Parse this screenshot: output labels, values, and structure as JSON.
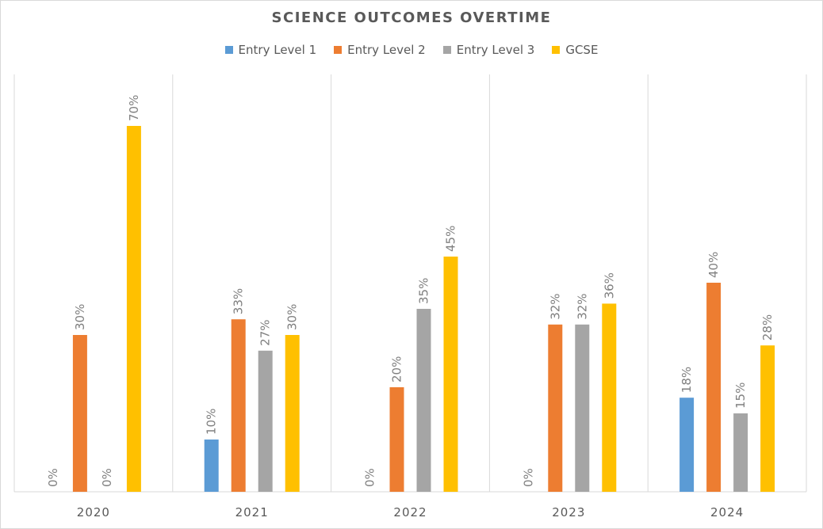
{
  "chart_data": {
    "type": "bar",
    "title": "SCIENCE OUTCOMES OVERTIME",
    "xlabel": "",
    "ylabel": "",
    "categories": [
      "2020",
      "2021",
      "2022",
      "2023",
      "2024"
    ],
    "series": [
      {
        "name": "Entry Level 1",
        "color": "#5b9bd5",
        "values": [
          0,
          10,
          0,
          0,
          18
        ],
        "labels": [
          "0%",
          "10%",
          "0%",
          "0%",
          "18%"
        ]
      },
      {
        "name": "Entry Level 2",
        "color": "#ed7d31",
        "values": [
          30,
          33,
          20,
          32,
          40
        ],
        "labels": [
          "30%",
          "33%",
          "20%",
          "32%",
          "40%"
        ]
      },
      {
        "name": "Entry Level 3",
        "color": "#a5a5a5",
        "values": [
          0,
          27,
          35,
          32,
          15
        ],
        "labels": [
          "0%",
          "27%",
          "35%",
          "32%",
          "15%"
        ]
      },
      {
        "name": "GCSE",
        "color": "#ffc000",
        "values": [
          70,
          30,
          45,
          36,
          28
        ],
        "labels": [
          "70%",
          "30%",
          "45%",
          "36%",
          "28%"
        ]
      }
    ],
    "unit": "%",
    "ylim": [
      0,
      80
    ],
    "grid": "vertical category separators",
    "legend_position": "top-center",
    "data_labels": "rotated vertical above bars"
  }
}
